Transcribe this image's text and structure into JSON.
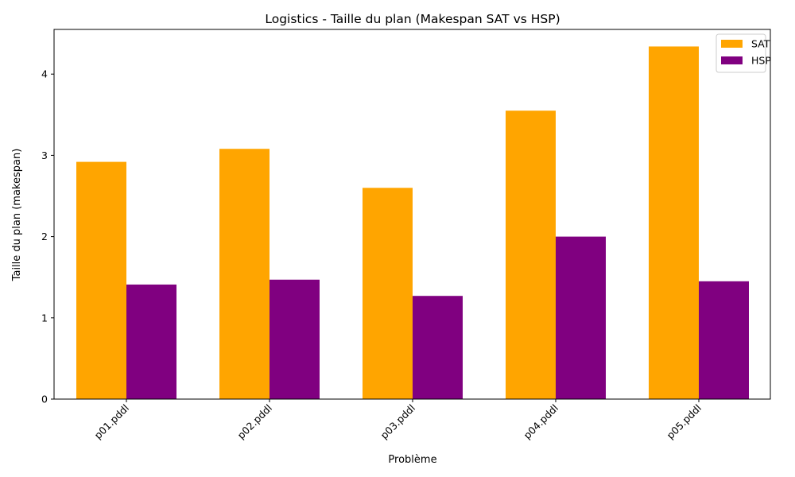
{
  "chart_data": {
    "type": "bar",
    "title": "Logistics - Taille du plan (Makespan SAT vs HSP)",
    "xlabel": "Problème",
    "ylabel": "Taille du plan (makespan)",
    "categories": [
      "p01.pddl",
      "p02.pddl",
      "p03.pddl",
      "p04.pddl",
      "p05.pddl"
    ],
    "series": [
      {
        "name": "SAT",
        "color": "#FFA500",
        "values": [
          2.92,
          3.08,
          2.6,
          3.55,
          4.34
        ]
      },
      {
        "name": "HSP",
        "color": "#800080",
        "values": [
          1.41,
          1.47,
          1.27,
          2.0,
          1.45
        ]
      }
    ],
    "ylim": [
      0,
      4.55
    ],
    "yticks": [
      0,
      1,
      2,
      3,
      4
    ],
    "grid": false,
    "legend_position": "top-right"
  }
}
